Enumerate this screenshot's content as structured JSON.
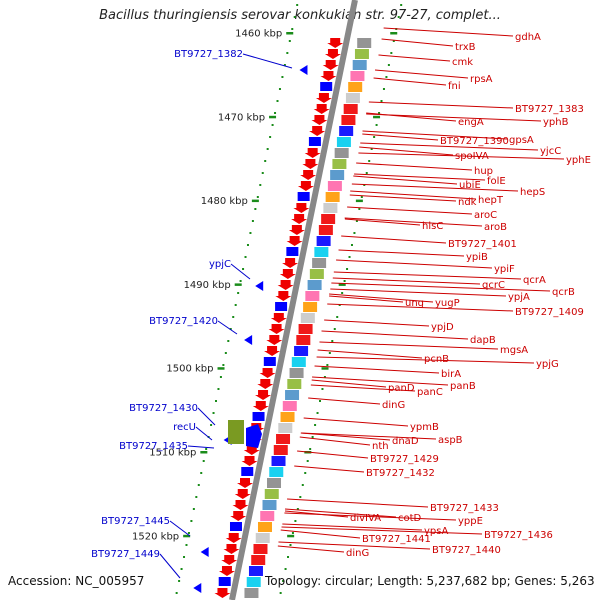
{
  "title": "Bacillus thuringiensis serovar konkukian str. 97-27, complet...",
  "footer": {
    "accession": "Accession: NC_005957",
    "topology": "Topology: circular; Length: 5,237,682 bp; Genes: 5,263"
  },
  "colors": {
    "backbone": "#888888",
    "left_label": "#0000cc",
    "right_label": "#cc0000",
    "tick": "#1a8c1a",
    "gene_red": "#ee0000",
    "gene_blue": "#0000ff"
  },
  "kbp_ticks": [
    {
      "label": "1460 kbp",
      "kbp": 1460
    },
    {
      "label": "1470 kbp",
      "kbp": 1470
    },
    {
      "label": "1480 kbp",
      "kbp": 1480
    },
    {
      "label": "1490 kbp",
      "kbp": 1490
    },
    {
      "label": "1500 kbp",
      "kbp": 1500
    },
    {
      "label": "1510 kbp",
      "kbp": 1510
    },
    {
      "label": "1520 kbp",
      "kbp": 1520
    }
  ],
  "left_genes": [
    "BT9727_1382",
    "ypjC",
    "BT9727_1420",
    "BT9727_1430",
    "recU",
    "BT9727_1435",
    "BT9727_1445",
    "BT9727_1449"
  ],
  "right_genes": [
    "gdhA",
    "trxB",
    "cmk",
    "rpsA",
    "fni",
    "BT9727_1383",
    "engA",
    "yphB",
    "BT9727_1390",
    "gpsA",
    "yjcC",
    "yphE",
    "spoIVA",
    "hup",
    "folE",
    "ubiE",
    "hepS",
    "ndk",
    "hepT",
    "aroC",
    "hisC",
    "aroB",
    "BT9727_1401",
    "ypiB",
    "ypiF",
    "qcrA",
    "qcrC",
    "qcrB",
    "ypjA",
    "ung",
    "yugP",
    "BT9727_1409",
    "ypjD",
    "dapB",
    "mgsA",
    "ypjG",
    "pcnB",
    "birA",
    "panC",
    "panB",
    "panD",
    "dinG",
    "ypmB",
    "dnaD",
    "aspB",
    "nth",
    "BT9727_1429",
    "BT9727_1432",
    "BT9727_1433",
    "yppE",
    "divIVA",
    "cotD",
    "BT9727_1436",
    "ypsA",
    "BT9727_1441",
    "BT9727_1440",
    "dinG"
  ]
}
